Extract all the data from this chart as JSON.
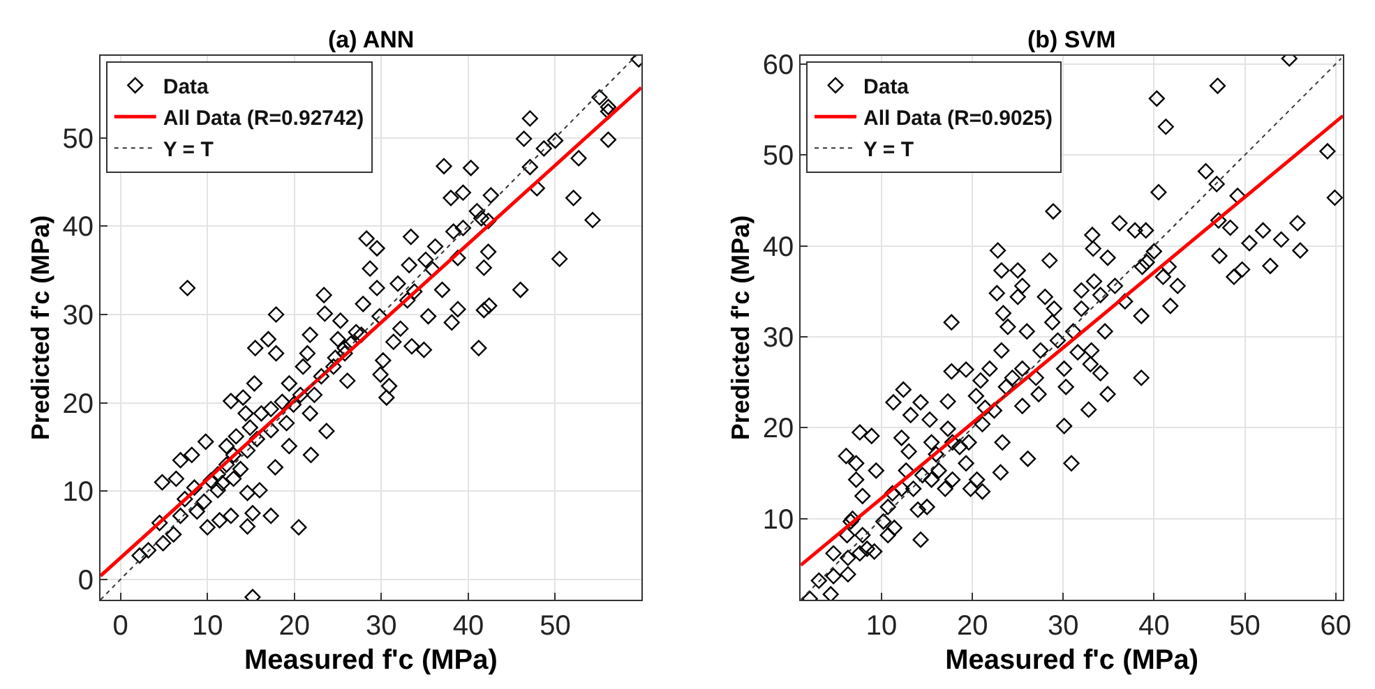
{
  "chart_data": [
    {
      "type": "scatter",
      "title": "(a) ANN",
      "xlabel": "Measured f'c (MPa)",
      "ylabel": "Predicted f'c (MPa)",
      "xlim": [
        -2.3,
        59.9
      ],
      "ylim": [
        -2.3,
        59.3
      ],
      "xticks": [
        0,
        10,
        20,
        30,
        40,
        50
      ],
      "yticks": [
        0,
        10,
        20,
        30,
        40,
        50
      ],
      "grid": true,
      "legend": "top left",
      "series": [
        {
          "name": "Data",
          "color": "#000000",
          "marker": "diamond",
          "x": [
            59.6,
            55.1,
            56.1,
            56.1,
            56.1,
            47.1,
            46.4,
            48.7,
            50.0,
            52.7,
            47.1,
            47.9,
            52.1,
            54.3,
            50.5,
            46.0,
            40.3,
            37.2,
            38.0,
            39.4,
            42.6,
            41.5,
            42.3,
            42.3,
            41.8,
            41.8,
            42.4,
            41.2,
            38.3,
            38.8,
            38.8,
            38.1,
            33.4,
            28.3,
            29.5,
            28.7,
            29.5,
            31.9,
            33.2,
            35.1,
            35.9,
            33.8,
            37.0,
            35.4,
            33.5,
            34.9,
            31.4,
            32.2,
            30.2,
            29.9,
            30.9,
            30.6,
            27.9,
            29.8,
            27.7,
            26.5,
            25.8,
            25.0,
            25.3,
            23.4,
            23.5,
            21.8,
            21.5,
            21.0,
            19.4,
            20.7,
            21.8,
            23.7,
            21.9,
            20.5,
            23.1,
            24.5,
            26.1,
            17.9,
            17.0,
            17.9,
            15.5,
            15.4,
            12.7,
            14.1,
            14.4,
            17.3,
            18.6,
            19.1,
            19.4,
            17.3,
            15.7,
            14.6,
            13.0,
            12.2,
            11.2,
            10.4,
            9.8,
            11.7,
            13.0,
            13.8,
            14.6,
            16.0,
            17.8,
            17.3,
            15.2,
            14.6,
            15.2,
            12.7,
            11.4,
            10.0,
            9.6,
            8.5,
            7.7,
            8.2,
            6.9,
            6.4,
            4.8,
            7.4,
            6.9,
            6.1,
            4.5,
            4.9,
            3.2,
            2.2,
            8.8,
            11.2,
            12.2,
            13.3,
            14.9,
            16.2,
            19.9,
            22.3,
            24.7,
            25.8,
            27.1,
            33.0,
            36.2,
            39.4,
            41.0
          ],
          "values": [
            58.9,
            54.6,
            53.5,
            53.0,
            49.8,
            52.2,
            49.9,
            48.8,
            49.7,
            47.7,
            46.7,
            44.3,
            43.2,
            40.7,
            36.3,
            32.8,
            46.6,
            46.8,
            43.2,
            43.8,
            43.5,
            40.9,
            40.6,
            37.1,
            35.3,
            30.5,
            31.0,
            26.2,
            39.4,
            36.4,
            30.6,
            29.1,
            38.8,
            38.6,
            37.5,
            35.2,
            33.0,
            33.5,
            35.6,
            36.2,
            35.1,
            32.6,
            32.8,
            29.8,
            26.4,
            26.0,
            26.9,
            28.4,
            24.8,
            23.2,
            21.9,
            20.6,
            31.2,
            29.8,
            27.7,
            26.7,
            25.6,
            27.2,
            29.3,
            32.2,
            30.1,
            27.7,
            25.6,
            24.1,
            22.2,
            20.9,
            18.8,
            16.8,
            14.1,
            5.9,
            23.0,
            24.1,
            22.5,
            30.0,
            27.2,
            25.6,
            26.2,
            22.2,
            20.2,
            20.6,
            18.8,
            19.3,
            20.1,
            17.7,
            15.1,
            16.9,
            15.9,
            14.6,
            14.1,
            13.0,
            11.9,
            11.2,
            15.6,
            10.9,
            11.4,
            12.5,
            9.8,
            10.1,
            12.7,
            7.2,
            7.5,
            6.0,
            -2.0,
            7.2,
            6.7,
            5.9,
            8.8,
            10.4,
            33.0,
            14.1,
            13.5,
            11.4,
            11.0,
            9.1,
            7.2,
            5.1,
            6.4,
            4.1,
            3.3,
            2.7,
            7.7,
            10.1,
            15.1,
            16.2,
            17.2,
            18.8,
            19.8,
            20.9,
            25.1,
            26.2,
            28.0,
            31.6,
            37.7,
            39.8,
            41.7
          ]
        },
        {
          "name": "All Data (R=0.92742)",
          "type": "line",
          "color": "#ff0000",
          "line_style": "solid",
          "x": [
            -2.3,
            59.9
          ],
          "values": [
            0.4,
            55.7
          ]
        },
        {
          "name": "Y = T",
          "type": "line",
          "color": "#333333",
          "line_style": "dotted",
          "x": [
            -2.3,
            59.3
          ],
          "values": [
            -2.3,
            59.3
          ]
        }
      ]
    },
    {
      "type": "scatter",
      "title": "(b) SVM",
      "xlabel": "Measured f'c (MPa)",
      "ylabel": "Predicted f'c (MPa)",
      "xlim": [
        1.1,
        60.8
      ],
      "ylim": [
        1.1,
        60.9
      ],
      "xticks": [
        10,
        20,
        30,
        40,
        50,
        60
      ],
      "yticks": [
        10,
        20,
        30,
        40,
        50,
        60
      ],
      "grid": true,
      "legend": "top left",
      "series": [
        {
          "name": "Data",
          "color": "#000000",
          "marker": "diamond",
          "x": [
            54.9,
            47.0,
            40.3,
            41.3,
            59.1,
            59.9,
            45.7,
            46.9,
            40.5,
            49.2,
            47.1,
            48.4,
            52.0,
            50.5,
            54.0,
            55.8,
            56.1,
            49.7,
            52.8,
            48.8,
            47.2,
            40.0,
            41.6,
            41.8,
            42.6,
            41.0,
            39.1,
            37.9,
            36.2,
            38.7,
            38.6,
            38.6,
            36.8,
            34.9,
            33.2,
            33.3,
            33.4,
            32.0,
            32.0,
            34.1,
            34.6,
            33.1,
            33.0,
            31.6,
            34.9,
            32.8,
            34.1,
            28.9,
            28.5,
            28.0,
            29.0,
            28.8,
            29.4,
            30.1,
            30.3,
            30.1,
            30.9,
            27.5,
            27.3,
            25.0,
            25.5,
            25.0,
            26.0,
            23.4,
            23.9,
            23.2,
            22.8,
            22.7,
            23.2,
            23.3,
            23.1,
            26.1,
            25.5,
            25.5,
            24.4,
            21.9,
            20.9,
            20.4,
            19.3,
            21.1,
            21.4,
            19.6,
            19.3,
            19.8,
            21.1,
            20.5,
            17.7,
            17.7,
            17.3,
            17.8,
            17.3,
            17.8,
            17.0,
            16.0,
            15.5,
            14.3,
            15.3,
            12.4,
            11.3,
            13.2,
            12.2,
            13.0,
            12.7,
            13.5,
            14.5,
            14.0,
            15.0,
            14.3,
            11.2,
            10.7,
            10.2,
            10.7,
            11.4,
            9.4,
            8.9,
            7.6,
            7.2,
            6.1,
            7.2,
            7.9,
            6.8,
            7.9,
            8.4,
            9.2,
            7.6,
            6.2,
            6.3,
            6.3,
            4.7,
            4.7,
            4.4,
            3.1,
            2.1,
            6.6,
            12.2,
            15.5,
            16.3,
            18.6,
            22.4,
            23.7,
            27.0,
            31.1,
            35.7,
            39.2
          ],
          "values": [
            60.6,
            57.6,
            56.2,
            53.1,
            50.4,
            45.3,
            48.2,
            46.8,
            45.9,
            45.5,
            42.8,
            42.0,
            41.7,
            40.3,
            40.7,
            42.5,
            39.5,
            37.4,
            37.8,
            36.6,
            38.9,
            39.4,
            37.7,
            33.4,
            35.6,
            36.6,
            41.7,
            41.7,
            42.5,
            37.7,
            32.3,
            25.5,
            33.9,
            38.7,
            41.2,
            39.7,
            36.1,
            35.1,
            33.1,
            34.6,
            30.6,
            28.5,
            27.0,
            28.3,
            23.7,
            22.0,
            26.0,
            43.8,
            38.4,
            34.4,
            33.1,
            31.6,
            29.6,
            26.5,
            24.5,
            20.2,
            16.1,
            28.5,
            23.7,
            37.3,
            35.6,
            34.4,
            30.6,
            32.6,
            31.1,
            37.3,
            39.5,
            34.8,
            28.5,
            18.4,
            15.1,
            16.6,
            22.4,
            26.5,
            25.5,
            26.5,
            25.2,
            23.5,
            26.4,
            20.4,
            22.2,
            18.4,
            16.1,
            13.3,
            13.0,
            14.3,
            31.6,
            26.2,
            22.9,
            18.4,
            19.9,
            14.3,
            13.3,
            17.1,
            18.4,
            22.8,
            20.9,
            24.2,
            22.8,
            21.4,
            18.9,
            17.4,
            15.3,
            13.3,
            14.8,
            11.0,
            11.3,
            7.7,
            12.8,
            11.3,
            9.7,
            8.2,
            9.0,
            15.3,
            19.1,
            19.5,
            16.1,
            16.9,
            14.3,
            12.5,
            10.0,
            8.2,
            6.7,
            6.4,
            6.2,
            8.2,
            5.7,
            3.9,
            6.2,
            3.7,
            1.7,
            3.2,
            1.2,
            9.7,
            13.3,
            14.3,
            15.3,
            17.9,
            21.9,
            24.5,
            25.5,
            30.6,
            35.6,
            38.2
          ]
        },
        {
          "name": "All Data (R=0.9025)",
          "type": "line",
          "color": "#ff0000",
          "line_style": "solid",
          "x": [
            1.1,
            60.8
          ],
          "values": [
            4.9,
            54.3
          ]
        },
        {
          "name": "Y = T",
          "type": "line",
          "color": "#333333",
          "line_style": "dotted",
          "x": [
            1.1,
            60.6
          ],
          "values": [
            1.1,
            60.6
          ]
        }
      ]
    }
  ]
}
